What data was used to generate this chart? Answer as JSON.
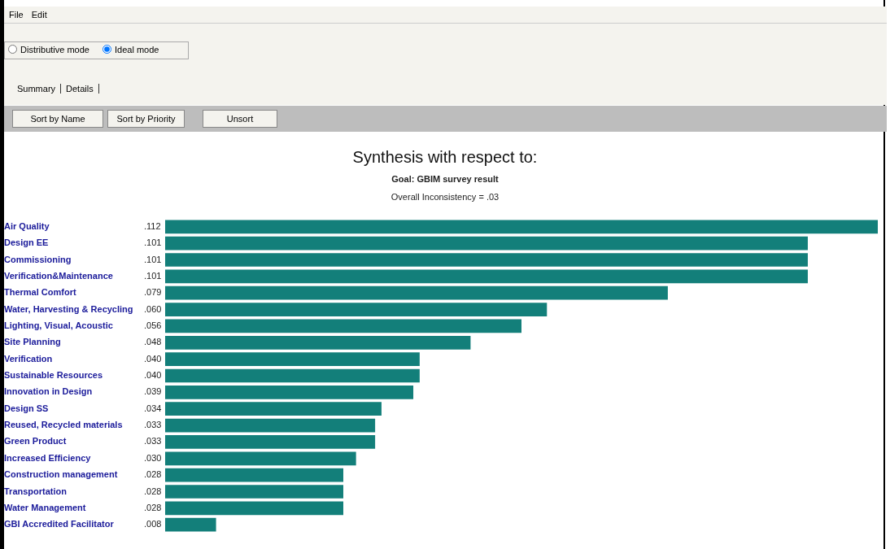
{
  "chart_data": {
    "type": "bar",
    "orientation": "horizontal",
    "title": "Synthesis with respect to:",
    "subtitle": "Goal: GBIM survey result",
    "annotations": [
      "File",
      "Edit",
      "Distributive mode",
      "Ideal mode",
      "Summary",
      "Details",
      "Sort by Name",
      "Sort by Priority",
      "Unsort",
      "Overall Inconsistency = .03"
    ],
    "categories": [
      "Air Quality",
      "Design EE",
      "Commissioning",
      "Verification&Maintenance",
      "Thermal Comfort",
      "Water, Harvesting & Recycling",
      "Lighting, Visual, Acoustic",
      "Site Planning",
      "Verification",
      "Sustainable Resources",
      "Innovation in Design",
      "Design SS",
      "Reused, Recycled materials",
      "Green Product",
      "Increased Efficiency",
      "Construction management",
      "Transportation",
      "Water Management",
      "GBI Accredited Facilitator"
    ],
    "values": [
      0.112,
      0.101,
      0.101,
      0.101,
      0.079,
      0.06,
      0.056,
      0.048,
      0.04,
      0.04,
      0.039,
      0.034,
      0.033,
      0.033,
      0.03,
      0.028,
      0.028,
      0.028,
      0.008
    ],
    "value_labels": [
      ".112",
      ".101",
      ".101",
      ".101",
      ".079",
      ".060",
      ".056",
      ".048",
      ".040",
      ".040",
      ".039",
      ".034",
      ".033",
      ".033",
      ".030",
      ".028",
      ".028",
      ".028",
      ".008"
    ],
    "color": "#137f7a",
    "grid": false,
    "legend": false
  }
}
